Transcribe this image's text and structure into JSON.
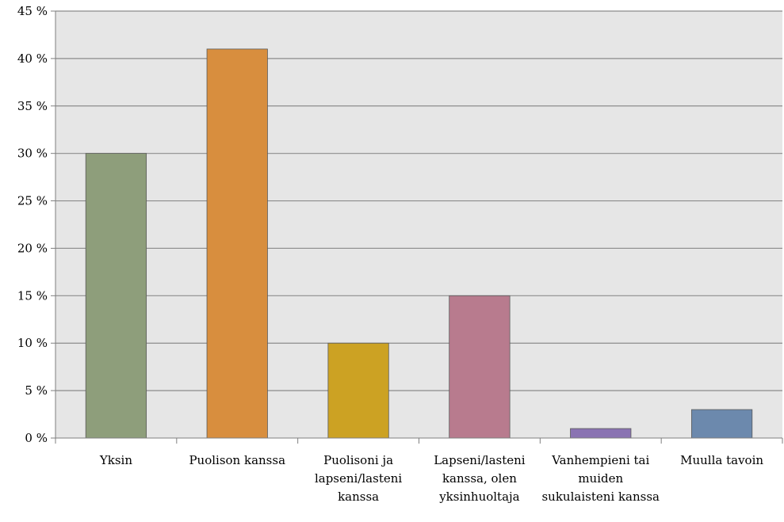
{
  "chart_data": {
    "type": "bar",
    "categories": [
      [
        "Yksin"
      ],
      [
        "Puolison kanssa"
      ],
      [
        "Puolisoni ja",
        "lapseni/lasteni",
        "kanssa"
      ],
      [
        "Lapseni/lasteni",
        "kanssa, olen",
        "yksinhuoltaja"
      ],
      [
        "Vanhempieni tai",
        "muiden",
        "sukulaisteni kanssa"
      ],
      [
        "Muulla tavoin"
      ]
    ],
    "values": [
      30,
      41,
      10,
      15,
      1,
      3
    ],
    "colors": [
      "#8e9e7b",
      "#d88e3e",
      "#cca223",
      "#b87b8e",
      "#8a73b2",
      "#6c89ad"
    ],
    "yticks": [
      "0 %",
      "5 %",
      "10 %",
      "15 %",
      "20 %",
      "25 %",
      "30 %",
      "35 %",
      "40 %",
      "45 %"
    ],
    "ylim": [
      0,
      45
    ],
    "grid": true,
    "plot_background": "#e6e6e6"
  }
}
